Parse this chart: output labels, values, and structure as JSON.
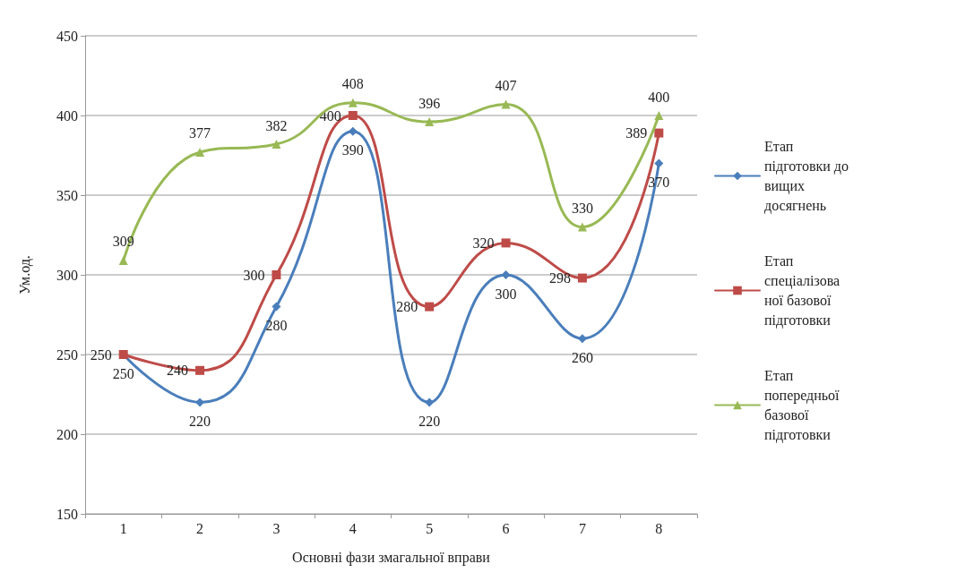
{
  "chart_data": {
    "type": "line",
    "xlabel": "Основні фази змагальної вправи",
    "ylabel": "Ум.од.",
    "categories": [
      "1",
      "2",
      "3",
      "4",
      "5",
      "6",
      "7",
      "8"
    ],
    "series": [
      {
        "name": "Етап підготовки до вищих досягнень",
        "color": "#4a7ebb",
        "marker": "diamond",
        "values": [
          250,
          220,
          280,
          390,
          220,
          300,
          260,
          370
        ]
      },
      {
        "name": "Етап спеціалізованої базової підготовки",
        "color": "#be4b48",
        "marker": "square",
        "values": [
          250,
          240,
          300,
          400,
          280,
          320,
          298,
          389
        ]
      },
      {
        "name": "Етап попередньої базової підготовки",
        "color": "#98b954",
        "marker": "triangle",
        "values": [
          309,
          377,
          382,
          408,
          396,
          407,
          330,
          400
        ]
      }
    ],
    "ylim": [
      150,
      450
    ],
    "yticks": [
      150,
      200,
      250,
      300,
      350,
      400,
      450
    ],
    "grid": "y",
    "legend": "right",
    "data_labels": true,
    "line_style": "solid"
  }
}
